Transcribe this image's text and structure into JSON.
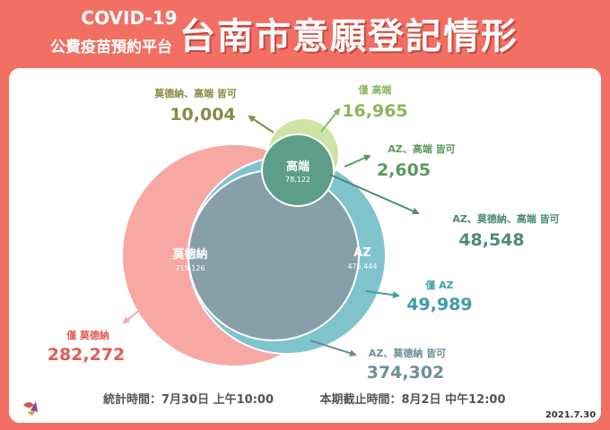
{
  "header": {
    "line1": "COVID-19",
    "line2": "公費疫苗預約平台",
    "title": "台南市意願登記情形"
  },
  "colors": {
    "background": "#f26f64",
    "moderna": "#f7a8a4",
    "az": "#7fc3cc",
    "medigen": "#cfe3a6",
    "overlap_all": "#5e9e88",
    "moderna_az": "#879fa8",
    "text_moderna_only": "#e35c56",
    "text_az_only": "#3f9bab",
    "text_medigen_only": "#8cb55c",
    "text_moderna_medigen": "#8a8a45",
    "text_az_medigen": "#5a9a5e",
    "text_all_three": "#4b8a7a",
    "text_az_moderna": "#6e8e98"
  },
  "chart_data": {
    "type": "venn",
    "title": "台南市意願登記情形",
    "sets": [
      {
        "key": "moderna",
        "name": "莫德納",
        "total": "715,126",
        "total_value": 715126
      },
      {
        "key": "az",
        "name": "AZ",
        "total": "475,444",
        "total_value": 475444
      },
      {
        "key": "medigen",
        "name": "高端",
        "total": "78,122",
        "total_value": 78122
      }
    ],
    "regions": [
      {
        "key": "moderna_medigen",
        "label": "莫德納、高端 皆可",
        "value_text": "10,004",
        "value": 10004
      },
      {
        "key": "medigen_only",
        "label": "僅 高端",
        "value_text": "16,965",
        "value": 16965
      },
      {
        "key": "az_medigen",
        "label": "AZ、高端 皆可",
        "value_text": "2,605",
        "value": 2605
      },
      {
        "key": "all_three",
        "label": "AZ、莫德納、高端 皆可",
        "value_text": "48,548",
        "value": 48548
      },
      {
        "key": "az_only",
        "label": "僅 AZ",
        "value_text": "49,989",
        "value": 49989
      },
      {
        "key": "moderna_only",
        "label": "僅 莫德納",
        "value_text": "282,272",
        "value": 282272
      },
      {
        "key": "az_moderna",
        "label": "AZ、莫德納 皆可",
        "value_text": "374,302",
        "value": 374302
      }
    ]
  },
  "footer": {
    "stats_time": "統計時間：7月30日 上午10:00",
    "deadline": "本期截止時間：8月2日 中午12:00",
    "date": "2021.7.30"
  }
}
